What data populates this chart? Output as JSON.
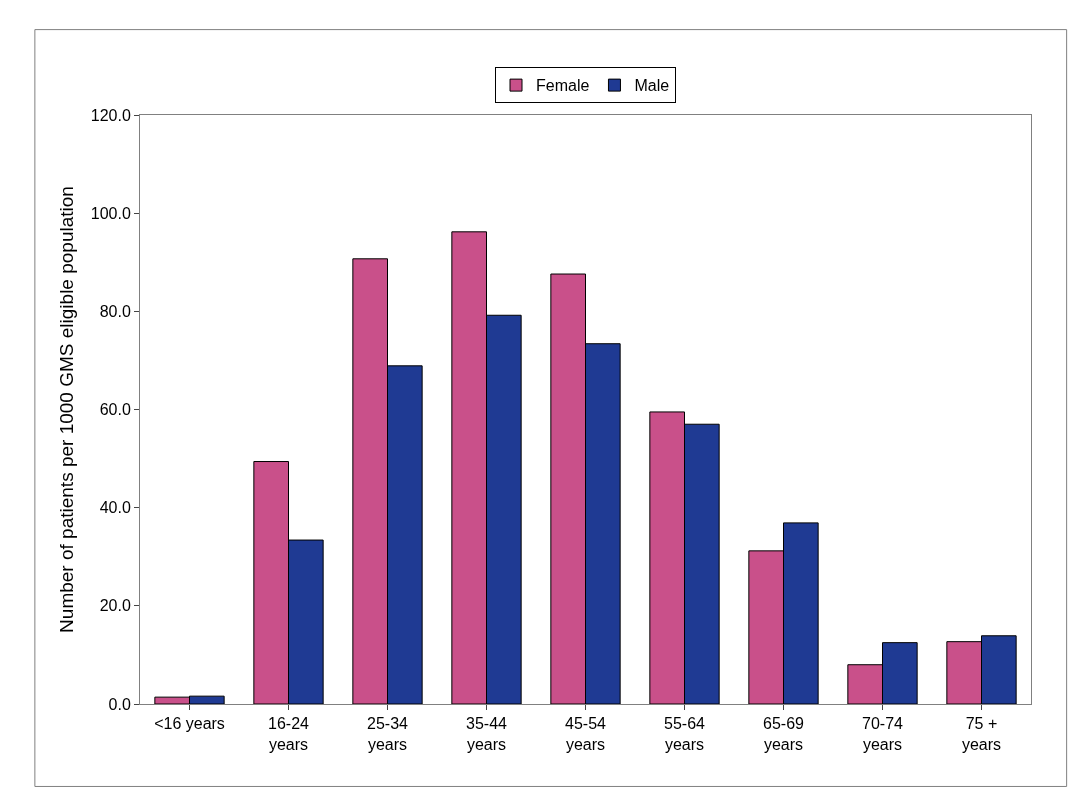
{
  "chart_data": {
    "type": "bar",
    "ylabel": "Number of patients per 1000 GMS eligible population",
    "categories": [
      "<16 years",
      "16-24\nyears",
      "25-34\nyears",
      "35-44\nyears",
      "45-54\nyears",
      "55-64\nyears",
      "65-69\nyears",
      "70-74\nyears",
      "75 +\nyears"
    ],
    "series": [
      {
        "name": "Female",
        "color": "#c9508a",
        "values": [
          1.4,
          49.4,
          90.7,
          96.2,
          87.6,
          59.5,
          31.2,
          8.0,
          12.7
        ]
      },
      {
        "name": "Male",
        "color": "#1f3a93",
        "values": [
          1.6,
          33.4,
          68.9,
          79.2,
          73.4,
          57.0,
          36.9,
          12.5,
          13.9
        ]
      }
    ],
    "ylim": [
      0,
      120
    ],
    "yticks": [
      {
        "value": 0,
        "label": "0.0"
      },
      {
        "value": 20,
        "label": "20.0"
      },
      {
        "value": 40,
        "label": "40.0"
      },
      {
        "value": 60,
        "label": "60.0"
      },
      {
        "value": 80,
        "label": "80.0"
      },
      {
        "value": 100,
        "label": "100.0"
      },
      {
        "value": 120,
        "label": "120.0"
      }
    ],
    "legend": "top"
  }
}
